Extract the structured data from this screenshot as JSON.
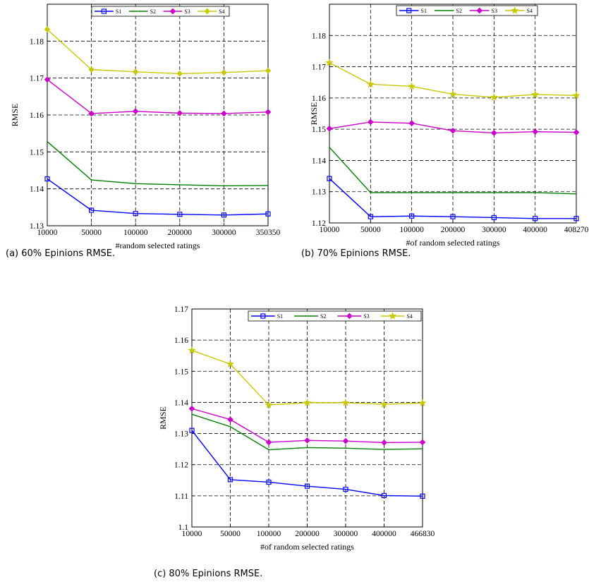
{
  "chart_data": [
    {
      "type": "line",
      "caption": "(a) 60% Epinions RMSE.",
      "categories": [
        "10000",
        "50000",
        "100000",
        "200000",
        "300000",
        "350350"
      ],
      "xlabel": "#random selected ratings",
      "ylabel": "RMSE",
      "ylim": [
        1.13,
        1.19
      ],
      "yticks": [
        "1.13",
        "1.14",
        "1.15",
        "1.16",
        "1.17",
        "1.18"
      ],
      "grid": true,
      "legend": "top-center",
      "series": [
        {
          "name": "S1",
          "color": "#0000ff",
          "marker": "square",
          "values": [
            1.1427,
            1.1342,
            1.1333,
            1.1331,
            1.1329,
            1.1332
          ]
        },
        {
          "name": "S2",
          "color": "#008000",
          "marker": "none",
          "values": [
            1.1528,
            1.1424,
            1.1414,
            1.1411,
            1.1408,
            1.1409
          ]
        },
        {
          "name": "S3",
          "color": "#cc00cc",
          "marker": "diamond",
          "values": [
            1.1696,
            1.1604,
            1.161,
            1.1605,
            1.1604,
            1.1608
          ]
        },
        {
          "name": "S4",
          "color": "#c8c800",
          "marker": "diamond",
          "values": [
            1.1832,
            1.1723,
            1.1717,
            1.1712,
            1.1715,
            1.172
          ]
        }
      ]
    },
    {
      "type": "line",
      "caption": "(b) 70% Epinions RMSE.",
      "categories": [
        "10000",
        "50000",
        "100000",
        "200000",
        "300000",
        "400000",
        "408270"
      ],
      "xlabel": "#of random selected ratings",
      "ylabel": "RMSE",
      "ylim": [
        1.12,
        1.19
      ],
      "yticks": [
        "1.12",
        "1.13",
        "1.14",
        "1.15",
        "1.16",
        "1.17",
        "1.18"
      ],
      "grid": true,
      "legend": "top-center",
      "series": [
        {
          "name": "S1",
          "color": "#0000ff",
          "marker": "square",
          "values": [
            1.1342,
            1.122,
            1.1222,
            1.122,
            1.1217,
            1.1214,
            1.1214
          ]
        },
        {
          "name": "S2",
          "color": "#008000",
          "marker": "none",
          "values": [
            1.1442,
            1.1297,
            1.1297,
            1.1297,
            1.1297,
            1.1297,
            1.1293
          ]
        },
        {
          "name": "S3",
          "color": "#cc00cc",
          "marker": "diamond",
          "values": [
            1.1502,
            1.1523,
            1.1519,
            1.1495,
            1.1488,
            1.1492,
            1.149
          ]
        },
        {
          "name": "S4",
          "color": "#c8c800",
          "marker": "star",
          "values": [
            1.1713,
            1.1644,
            1.1637,
            1.1612,
            1.1602,
            1.1611,
            1.1608
          ]
        }
      ]
    },
    {
      "type": "line",
      "caption": "(c) 80% Epinions RMSE.",
      "categories": [
        "10000",
        "50000",
        "100000",
        "200000",
        "300000",
        "400000",
        "466830"
      ],
      "xlabel": "#of random selected ratings",
      "ylabel": "RMSE",
      "ylim": [
        1.1,
        1.17
      ],
      "yticks": [
        "1.1",
        "1.11",
        "1.12",
        "1.13",
        "1.14",
        "1.15",
        "1.16",
        "1.17"
      ],
      "grid": true,
      "legend": "top-right",
      "series": [
        {
          "name": "S1",
          "color": "#0000ff",
          "marker": "square",
          "values": [
            1.131,
            1.1152,
            1.1144,
            1.1131,
            1.1121,
            1.1101,
            1.1099
          ]
        },
        {
          "name": "S2",
          "color": "#008000",
          "marker": "none",
          "values": [
            1.1362,
            1.1322,
            1.1248,
            1.1255,
            1.1253,
            1.1249,
            1.1251
          ]
        },
        {
          "name": "S3",
          "color": "#cc00cc",
          "marker": "diamond",
          "values": [
            1.138,
            1.1345,
            1.1272,
            1.1278,
            1.1276,
            1.1271,
            1.1272
          ]
        },
        {
          "name": "S4",
          "color": "#c8c800",
          "marker": "star",
          "values": [
            1.1567,
            1.1523,
            1.1392,
            1.1399,
            1.1399,
            1.1394,
            1.1398
          ]
        }
      ]
    }
  ]
}
